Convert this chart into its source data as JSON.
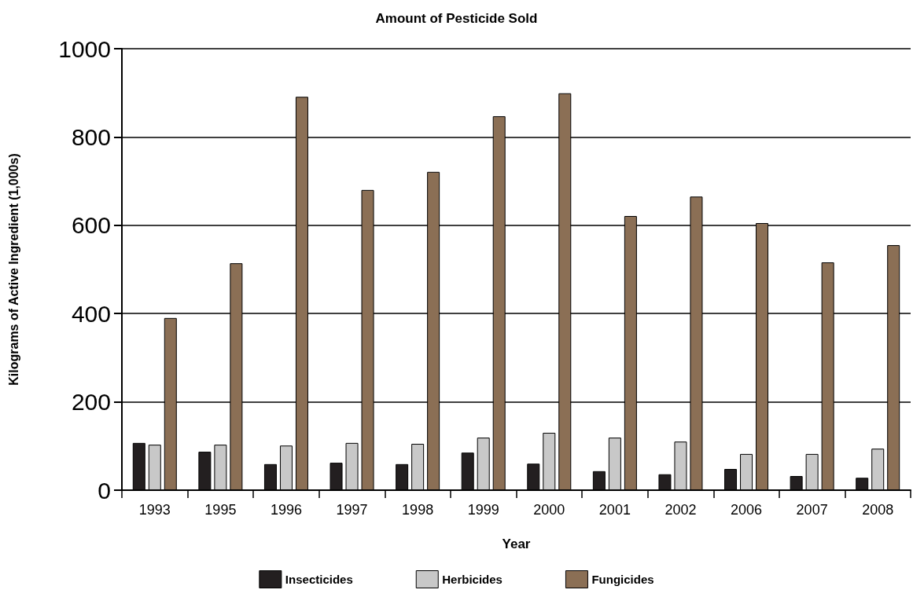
{
  "chart_data": {
    "type": "bar",
    "title": "Amount of Pesticide Sold",
    "xlabel": "Year",
    "ylabel": "Kilograms of Active Ingredient (1,000s)",
    "categories": [
      "1993",
      "1995",
      "1996",
      "1997",
      "1998",
      "1999",
      "2000",
      "2001",
      "2002",
      "2006",
      "2007",
      "2008"
    ],
    "series": [
      {
        "name": "Insecticides",
        "color": "#231f20",
        "values": [
          107,
          87,
          59,
          62,
          59,
          85,
          60,
          43,
          36,
          48,
          32,
          28
        ]
      },
      {
        "name": "Herbicides",
        "color": "#c8c8c8",
        "values": [
          103,
          103,
          101,
          107,
          105,
          119,
          130,
          119,
          110,
          82,
          82,
          94
        ]
      },
      {
        "name": "Fungicides",
        "color": "#8b6f55",
        "values": [
          390,
          514,
          891,
          680,
          721,
          847,
          899,
          621,
          665,
          605,
          516,
          555
        ]
      }
    ],
    "ylim": [
      0,
      1000
    ],
    "yticks": [
      0,
      200,
      400,
      600,
      800,
      1000
    ],
    "grid": "y",
    "legend": "bottom"
  }
}
